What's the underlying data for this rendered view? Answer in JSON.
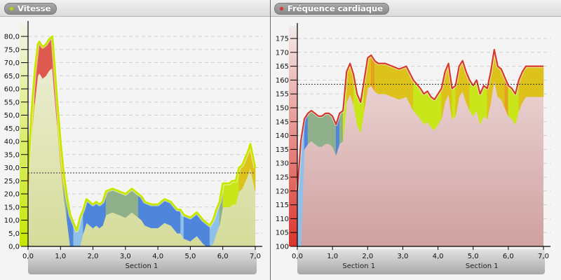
{
  "left_panel": {
    "title": "Vitesse",
    "legend_dot_color": "#b5d900",
    "section_labels": [
      "Section 1"
    ]
  },
  "right_panel": {
    "title": "Fréquence cardiaque",
    "legend_dot_color": "#d9342b",
    "section_labels": [
      "Section 1",
      "Section 1"
    ]
  },
  "colors": {
    "speed_line": "#c8e600",
    "hr_line": "#d63a2e",
    "zone_red": "#de5a4e",
    "zone_orange": "#e8a020",
    "zone_gold": "#dcc21a",
    "zone_lime": "#c8e61a",
    "zone_green": "#8fb08a",
    "zone_blue": "#4f86dc",
    "zone_lightblue": "#8ec0ea",
    "speed_fill": "#d5dc9a",
    "hr_fill_top": "#f0dcdc",
    "hr_fill_bottom": "#cfa0a0",
    "axis_band_speed": "#c8e600",
    "axis_band_hr": "#d9342b"
  },
  "chart_data": [
    {
      "type": "area",
      "title": "Vitesse",
      "xlabel": "Section 1",
      "ylabel": "",
      "xlim": [
        0,
        7
      ],
      "ylim": [
        0,
        80
      ],
      "x_ticks": [
        "0,0",
        "1,0",
        "2,0",
        "3,0",
        "4,0",
        "5,0",
        "6,0",
        "7,0"
      ],
      "y_ticks": [
        "0,0",
        "5,0",
        "10,0",
        "15,0",
        "20,0",
        "25,0",
        "30,0",
        "35,0",
        "40,0",
        "45,0",
        "50,0",
        "55,0",
        "60,0",
        "65,0",
        "70,0",
        "75,0",
        "80,0"
      ],
      "grid": true,
      "reference_line": 28.0,
      "series": [
        {
          "name": "Vitesse",
          "x": [
            0.0,
            0.1,
            0.2,
            0.3,
            0.35,
            0.45,
            0.55,
            0.65,
            0.75,
            0.8,
            0.9,
            1.0,
            1.1,
            1.2,
            1.3,
            1.4,
            1.5,
            1.6,
            1.7,
            1.8,
            1.9,
            2.0,
            2.1,
            2.2,
            2.3,
            2.4,
            2.6,
            2.8,
            3.0,
            3.2,
            3.4,
            3.5,
            3.6,
            3.8,
            4.0,
            4.2,
            4.4,
            4.6,
            4.7,
            4.8,
            5.0,
            5.2,
            5.4,
            5.5,
            5.6,
            5.7,
            5.8,
            5.9,
            6.0,
            6.2,
            6.3,
            6.4,
            6.5,
            6.6,
            6.7,
            6.8,
            6.85,
            6.9,
            7.0
          ],
          "values": [
            28,
            50,
            66,
            77,
            78,
            76,
            77,
            79,
            80,
            72,
            55,
            40,
            28,
            19,
            12,
            9,
            6,
            11,
            14,
            18,
            17,
            16,
            17,
            16,
            17,
            21,
            22,
            21,
            20,
            22,
            20,
            19,
            17,
            16,
            16,
            18,
            17,
            14,
            14,
            12,
            11,
            13,
            10,
            9,
            8,
            10,
            14,
            17,
            24,
            24,
            25,
            25,
            30,
            31,
            34,
            37,
            39,
            36,
            30
          ]
        }
      ]
    },
    {
      "type": "area",
      "title": "Fréquence cardiaque",
      "xlabel": "Section 1",
      "ylabel": "",
      "xlim": [
        0,
        7
      ],
      "ylim": [
        100,
        175
      ],
      "x_ticks": [
        "0,0",
        "1,0",
        "2,0",
        "3,0",
        "4,0",
        "5,0",
        "6,0",
        "7,0"
      ],
      "y_ticks": [
        "100",
        "105",
        "110",
        "115",
        "120",
        "125",
        "130",
        "135",
        "140",
        "145",
        "150",
        "155",
        "160",
        "165",
        "170",
        "175"
      ],
      "grid": true,
      "reference_line": 158.5,
      "series": [
        {
          "name": "Fréquence cardiaque",
          "x": [
            0.0,
            0.1,
            0.2,
            0.3,
            0.4,
            0.5,
            0.6,
            0.7,
            0.8,
            0.9,
            1.0,
            1.1,
            1.2,
            1.3,
            1.4,
            1.5,
            1.6,
            1.7,
            1.8,
            1.9,
            2.0,
            2.1,
            2.2,
            2.3,
            2.5,
            2.7,
            2.9,
            3.1,
            3.3,
            3.5,
            3.6,
            3.7,
            3.8,
            3.9,
            4.0,
            4.1,
            4.2,
            4.3,
            4.4,
            4.5,
            4.6,
            4.7,
            4.8,
            4.9,
            5.0,
            5.1,
            5.2,
            5.3,
            5.4,
            5.5,
            5.6,
            5.7,
            5.8,
            5.9,
            6.0,
            6.1,
            6.2,
            6.3,
            6.4,
            6.5,
            6.6,
            6.7,
            6.8,
            6.9,
            7.0
          ],
          "values": [
            120,
            138,
            146,
            148,
            149,
            148,
            147,
            147,
            148,
            148,
            147,
            144,
            148,
            149,
            163,
            166,
            162,
            155,
            152,
            160,
            168,
            169,
            167,
            166,
            166,
            165,
            164,
            165,
            160,
            157,
            155,
            156,
            154,
            153,
            155,
            157,
            163,
            166,
            157,
            158,
            165,
            167,
            163,
            160,
            158,
            160,
            155,
            158,
            157,
            163,
            171,
            165,
            164,
            161,
            158,
            157,
            155,
            160,
            163,
            165,
            165,
            165,
            165,
            165,
            165
          ]
        }
      ]
    }
  ]
}
